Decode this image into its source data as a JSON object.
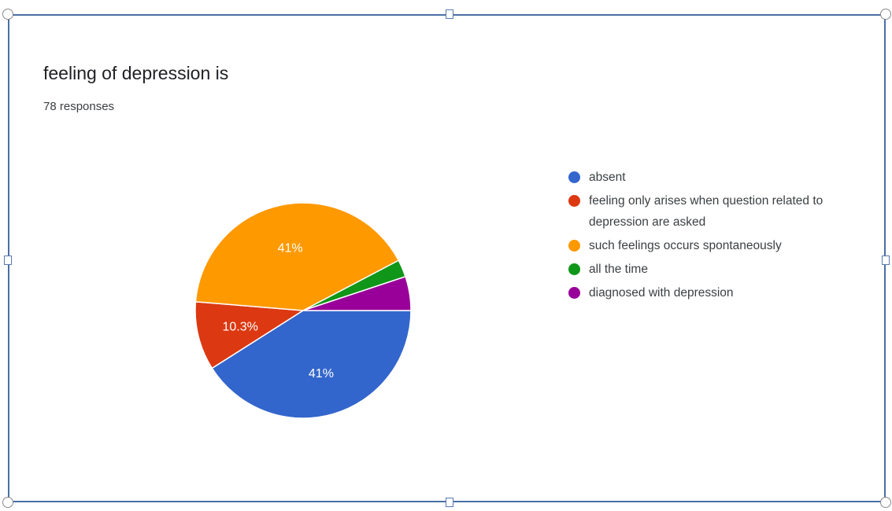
{
  "chart_data": {
    "type": "pie",
    "title": "feeling of depression is",
    "subtitle": "78 responses",
    "legend_position": "right",
    "slices": [
      {
        "label": "absent",
        "value": 41,
        "value_label": "41%",
        "color": "#3366cc"
      },
      {
        "label": "feeling only arises when question related to depression are asked",
        "value": 10.3,
        "value_label": "10.3%",
        "color": "#dc3912"
      },
      {
        "label": "such feelings occurs spontaneously",
        "value": 41,
        "value_label": "41%",
        "color": "#ff9900"
      },
      {
        "label": "all the time",
        "value": 2.6,
        "value_label": "",
        "color": "#109618"
      },
      {
        "label": "diagnosed with depression",
        "value": 5.1,
        "value_label": "",
        "color": "#990099"
      }
    ]
  }
}
